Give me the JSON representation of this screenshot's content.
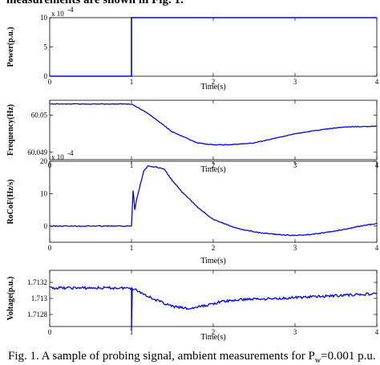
{
  "header_text": "measurements are shown in Fig. 1.",
  "caption_text": "Fig. 1. A sample of probing signal, ambient measurements for P",
  "caption_sub": "w",
  "caption_tail": "=0.001 p.u.",
  "chart_data": [
    {
      "type": "line",
      "ylabel": "Power(p.u.)",
      "xlabel": "Time(s)",
      "exponent_label": "x 10",
      "exponent_power": "-4",
      "xlim": [
        0,
        4
      ],
      "ylim": [
        0,
        10
      ],
      "x_ticks": [
        "0",
        "1",
        "2",
        "3",
        "4"
      ],
      "y_ticks": [
        "0",
        "5",
        "10"
      ],
      "line_color": "#0000ff",
      "x": [
        0,
        1.0,
        1.0,
        4.0
      ],
      "y": [
        0,
        0,
        10,
        10
      ]
    },
    {
      "type": "line",
      "ylabel": "Frequency(Hz)",
      "xlabel": "Time(s)",
      "xlim": [
        0,
        4
      ],
      "ylim": [
        60.0488,
        60.0504
      ],
      "x_ticks": [
        "0",
        "1",
        "2",
        "3",
        "4"
      ],
      "y_ticks": [
        "60.049",
        "60.05"
      ],
      "line_color": "#0000ff",
      "x": [
        0,
        0.5,
        1.0,
        1.2,
        1.5,
        1.8,
        2.0,
        2.2,
        2.5,
        2.8,
        3.0,
        3.3,
        3.6,
        4.0
      ],
      "y": [
        60.0503,
        60.0503,
        60.0503,
        60.05005,
        60.04955,
        60.04925,
        60.0492,
        60.0492,
        60.04925,
        60.0494,
        60.0495,
        60.0496,
        60.04968,
        60.0497
      ]
    },
    {
      "type": "line",
      "ylabel": "RoCoF(Hz/s)",
      "xlabel": "Time(s)",
      "exponent_label": "x 10",
      "exponent_power": "-4",
      "xlim": [
        0,
        4
      ],
      "ylim": [
        -5,
        20
      ],
      "x_ticks": [
        "0",
        "1",
        "2",
        "3",
        "4"
      ],
      "y_ticks": [
        "0",
        "10",
        "20"
      ],
      "line_color": "#0000ff",
      "x": [
        0,
        0.5,
        1.0,
        1.02,
        1.04,
        1.06,
        1.1,
        1.15,
        1.2,
        1.3,
        1.4,
        1.5,
        1.6,
        1.8,
        2.0,
        2.3,
        2.6,
        2.9,
        3.0,
        3.2,
        3.5,
        3.8,
        4.0
      ],
      "y": [
        0,
        0,
        0,
        11,
        5,
        8,
        12,
        17,
        18.5,
        18.2,
        17.5,
        14,
        11,
        6,
        2,
        -0.8,
        -2.2,
        -2.8,
        -2.9,
        -2.6,
        -1.5,
        0,
        0.8
      ]
    },
    {
      "type": "line",
      "ylabel": "Voltage(p.u.)",
      "xlabel": "Time(s)",
      "xlim": [
        0,
        4
      ],
      "ylim": [
        1.71265,
        1.71335
      ],
      "x_ticks": [
        "0",
        "1",
        "2",
        "3",
        "4"
      ],
      "y_ticks": [
        "1.7128",
        "1.713",
        "1.7132"
      ],
      "line_color": "#0000ff",
      "x": [
        0,
        0.5,
        1.0,
        1.0,
        1.01,
        1.1,
        1.3,
        1.5,
        1.7,
        1.9,
        2.1,
        2.4,
        2.8,
        3.2,
        3.6,
        4.0
      ],
      "y": [
        1.71313,
        1.71313,
        1.71313,
        1.7126,
        1.71313,
        1.71308,
        1.71298,
        1.7129,
        1.71287,
        1.71291,
        1.71296,
        1.71299,
        1.713,
        1.71302,
        1.71304,
        1.71306
      ]
    }
  ]
}
